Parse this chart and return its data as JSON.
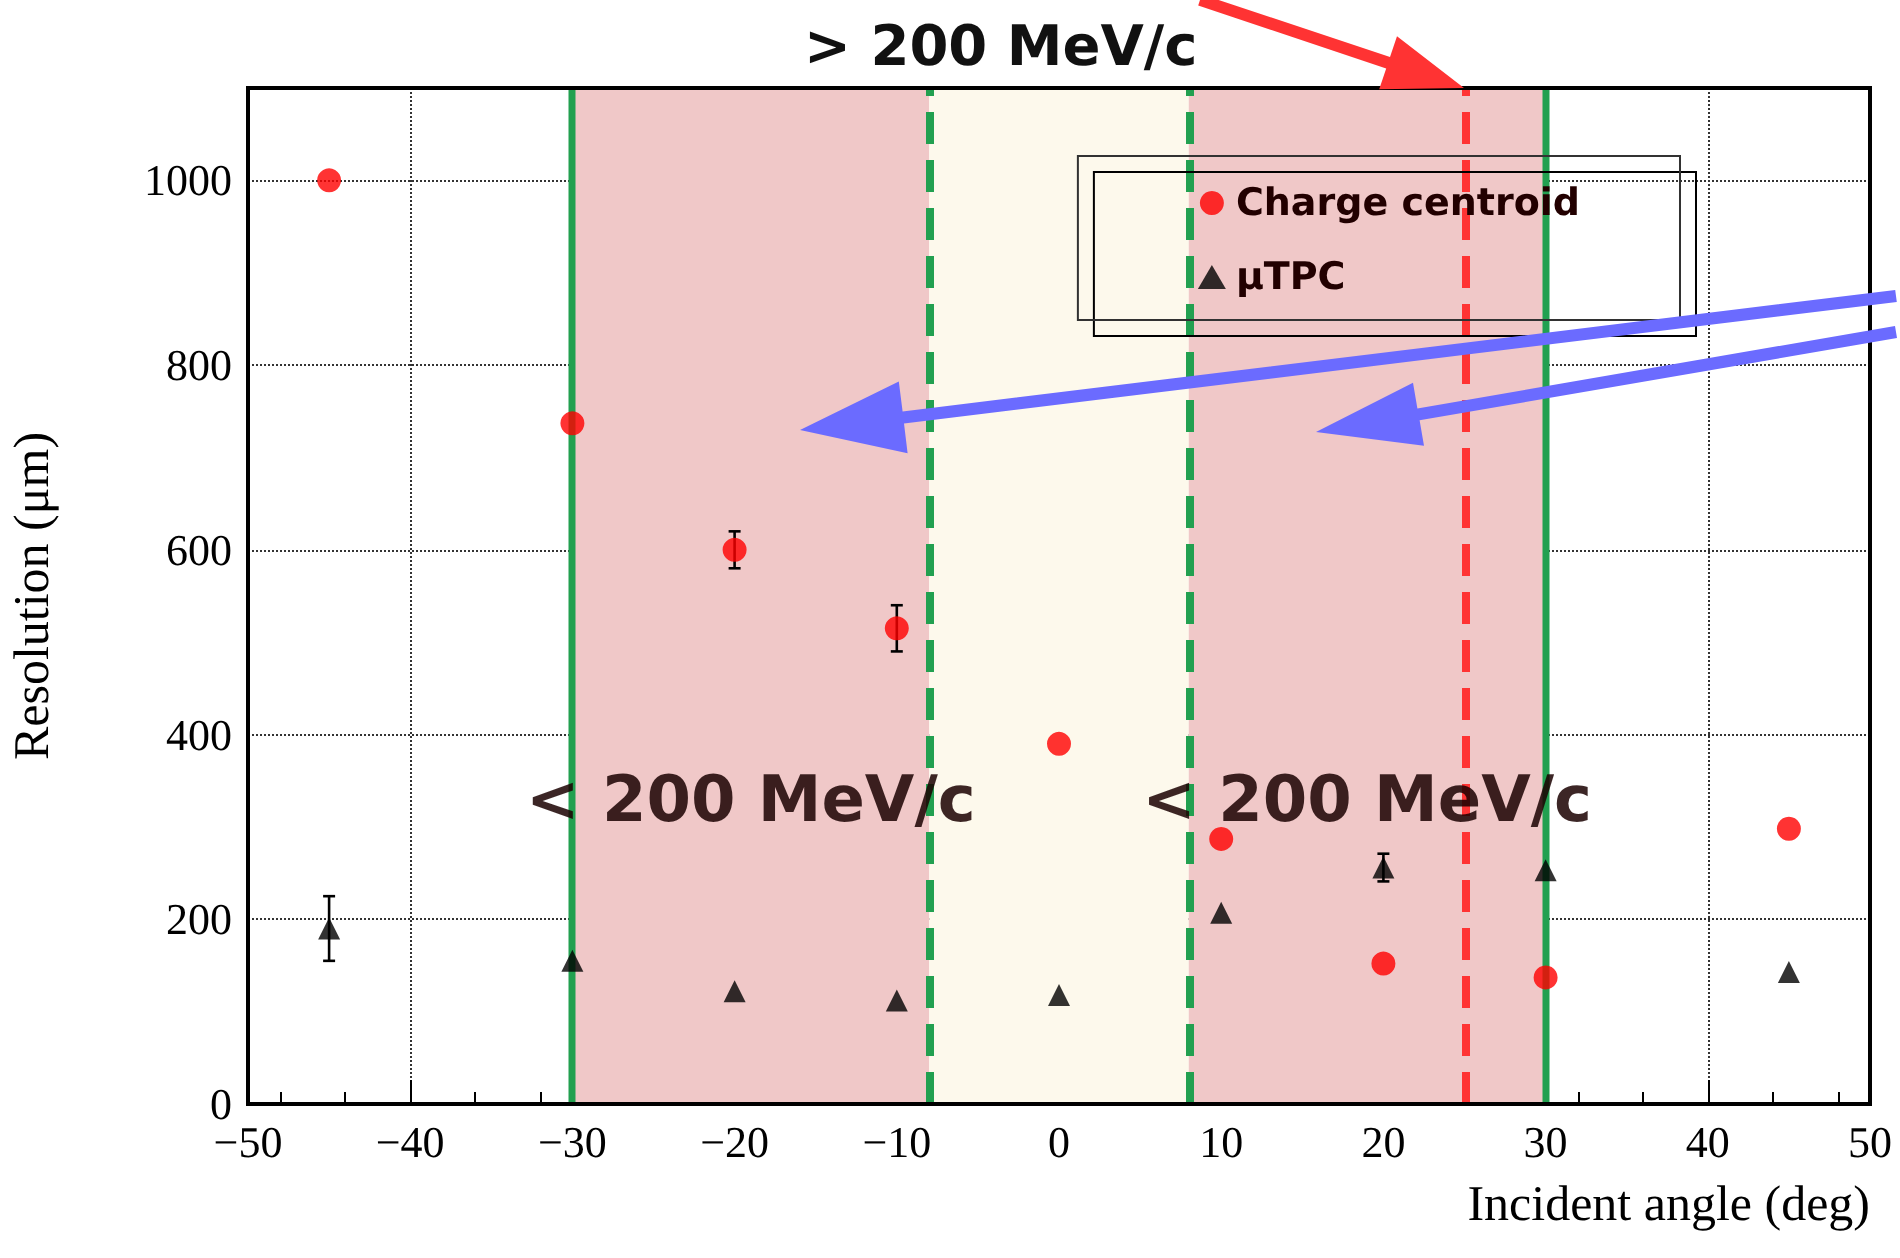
{
  "chart_data": {
    "type": "scatter",
    "title": "> 200 MeV/c",
    "xlabel": "Incident angle (deg)",
    "ylabel": "Resolution (μm)",
    "xlim": [
      -50,
      50
    ],
    "xticks": [
      -50,
      -40,
      -30,
      -20,
      -10,
      0,
      10,
      20,
      30,
      40,
      50
    ],
    "ylim": [
      0,
      1100
    ],
    "yticks": [
      0,
      200,
      400,
      600,
      800,
      1000
    ],
    "grid": true,
    "legend": "top right",
    "series": [
      {
        "name": "Charge centroid",
        "color": "#ff0000",
        "marker": "circle",
        "x": [
          -45,
          -30,
          -20,
          -10,
          0,
          10,
          20,
          30,
          45
        ],
        "values": [
          1000,
          737,
          600,
          515,
          390,
          287,
          152,
          137,
          298
        ],
        "errors": [
          null,
          null,
          20,
          25,
          null,
          null,
          null,
          null,
          null
        ]
      },
      {
        "name": "μTPC",
        "color": "#000000",
        "marker": "triangle",
        "x": [
          -45,
          -30,
          -20,
          -10,
          0,
          10,
          20,
          30,
          45
        ],
        "values": [
          190,
          155,
          122,
          112,
          118,
          207,
          256,
          253,
          143
        ],
        "errors": [
          35,
          null,
          null,
          null,
          null,
          null,
          15,
          null,
          null
        ]
      }
    ],
    "bands": [
      {
        "axis": "x",
        "from": -30,
        "to": -8,
        "color": "#f0c8c8"
      },
      {
        "axis": "x",
        "from": -8,
        "to": 8,
        "color": "#fdf9ec"
      },
      {
        "axis": "x",
        "from": 8,
        "to": 30,
        "color": "#f0c8c8"
      }
    ],
    "ref_lines": [
      {
        "axis": "x",
        "value": -30,
        "color": "#22a050",
        "line_style": "solid"
      },
      {
        "axis": "x",
        "value": 30,
        "color": "#22a050",
        "line_style": "solid"
      },
      {
        "axis": "x",
        "value": -8,
        "color": "#22a050",
        "line_style": "dashed"
      },
      {
        "axis": "x",
        "value": 8,
        "color": "#22a050",
        "line_style": "dashed"
      },
      {
        "axis": "x",
        "value": 25,
        "color": "#ff3333",
        "line_style": "dashed"
      }
    ],
    "annotations": [
      "< 200 MeV/c",
      "< 200 MeV/c"
    ]
  }
}
